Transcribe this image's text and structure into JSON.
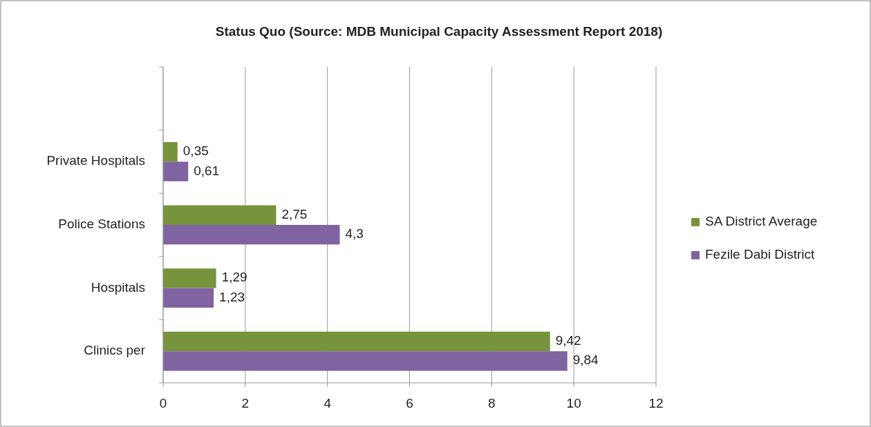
{
  "chart_data": {
    "type": "bar",
    "orientation": "horizontal",
    "title": "Status Quo (Source: MDB Municipal Capacity Assessment Report 2018)",
    "categories": [
      null,
      "Private Hospitals",
      "Police Stations",
      "Hospitals",
      "Clinics per"
    ],
    "series": [
      {
        "name": "SA District Average",
        "color": "#77933c",
        "values": [
          null,
          0.35,
          2.75,
          1.29,
          9.42
        ],
        "value_labels": [
          null,
          "0,35",
          "2,75",
          "1,29",
          "9,42"
        ]
      },
      {
        "name": "Fezile Dabi District",
        "color": "#8064a2",
        "values": [
          null,
          0.61,
          4.3,
          1.23,
          9.84
        ],
        "value_labels": [
          null,
          "0,61",
          "4,3",
          "1,23",
          "9,84"
        ]
      }
    ],
    "xlim": [
      0,
      12
    ],
    "xticks": [
      0,
      2,
      4,
      6,
      8,
      10,
      12
    ],
    "grid": "x",
    "legend": "right"
  }
}
